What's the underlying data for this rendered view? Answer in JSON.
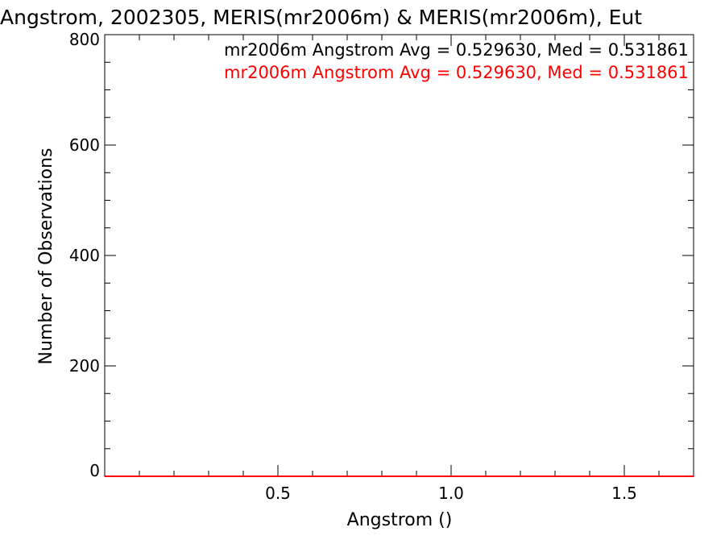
{
  "chart_data": {
    "type": "histogram",
    "title": "Angstrom, 2002305, MERIS(mr2006m) & MERIS(mr2006m), Eut",
    "xlabel": "Angstrom ()",
    "ylabel": "Number of Observations",
    "xlim": [
      0.0,
      1.7
    ],
    "ylim": [
      0,
      800
    ],
    "x_ticks": [
      0.5,
      1.0,
      1.5
    ],
    "x_tick_labels": [
      "0.5",
      "1.0",
      "1.5"
    ],
    "y_ticks": [
      0,
      200,
      400,
      600,
      800
    ],
    "y_tick_labels": [
      "0",
      "200",
      "400",
      "600",
      "800"
    ],
    "legend": [
      {
        "text": "mr2006m Angstrom Avg = 0.529630, Med = 0.531861",
        "color": "#000000"
      },
      {
        "text": "mr2006m Angstrom Avg = 0.529630, Med = 0.531861",
        "color": "#ff0000"
      }
    ],
    "legend_placement": "top-right",
    "grid": false,
    "series": [
      {
        "color": "#ff0000",
        "bin_start": 0.0,
        "bin_width": 0.00706,
        "counts": [
          0,
          0,
          0,
          0,
          0,
          0,
          0,
          0,
          0,
          0,
          0,
          0,
          0,
          0,
          0,
          0,
          0,
          0,
          0,
          0,
          0,
          0,
          0,
          0,
          0,
          0,
          0,
          0,
          0,
          0,
          0,
          0,
          0,
          0,
          0,
          0,
          0,
          0,
          0,
          0,
          0,
          0,
          0,
          0,
          0,
          0,
          0,
          0,
          0,
          0,
          0,
          0,
          0,
          0,
          0,
          0,
          0,
          0,
          0,
          0,
          0,
          0,
          0,
          0,
          0,
          0,
          0,
          0,
          0,
          0,
          0,
          0,
          0,
          0,
          0,
          0,
          0,
          0,
          0,
          0,
          0,
          0,
          0,
          0,
          0,
          0,
          0,
          0,
          0,
          0,
          0,
          0,
          0,
          0,
          0,
          0,
          0,
          0,
          0,
          0,
          0,
          0,
          0,
          0,
          0,
          0,
          0,
          0,
          0,
          0,
          0,
          0,
          0,
          0,
          0,
          0,
          0,
          0,
          0,
          0,
          0,
          0,
          0,
          0,
          0,
          0,
          0,
          0,
          0,
          0,
          0,
          0,
          0,
          0,
          0,
          0,
          0,
          0,
          0,
          0,
          0,
          0,
          0,
          0,
          0,
          0,
          0,
          0,
          0,
          0,
          0,
          0,
          0,
          0,
          0,
          0,
          0,
          0,
          0,
          0,
          0,
          0,
          0,
          0,
          0,
          0,
          0,
          0,
          0,
          0,
          0,
          0,
          0,
          0,
          0,
          0,
          0,
          0,
          0,
          0,
          0,
          0,
          0,
          0,
          0,
          0,
          0,
          0,
          0,
          0,
          0,
          0,
          0,
          0,
          0,
          0,
          0,
          0,
          0,
          0,
          0,
          0,
          0,
          0,
          0,
          0,
          0,
          0,
          0,
          0,
          0,
          0,
          0,
          0,
          0,
          0,
          0,
          0,
          0,
          0,
          0,
          0,
          0,
          0,
          0,
          0,
          0,
          0,
          0,
          0,
          0,
          0,
          0,
          0,
          0,
          0,
          0,
          0,
          0,
          0,
          0,
          0
        ]
      }
    ]
  }
}
